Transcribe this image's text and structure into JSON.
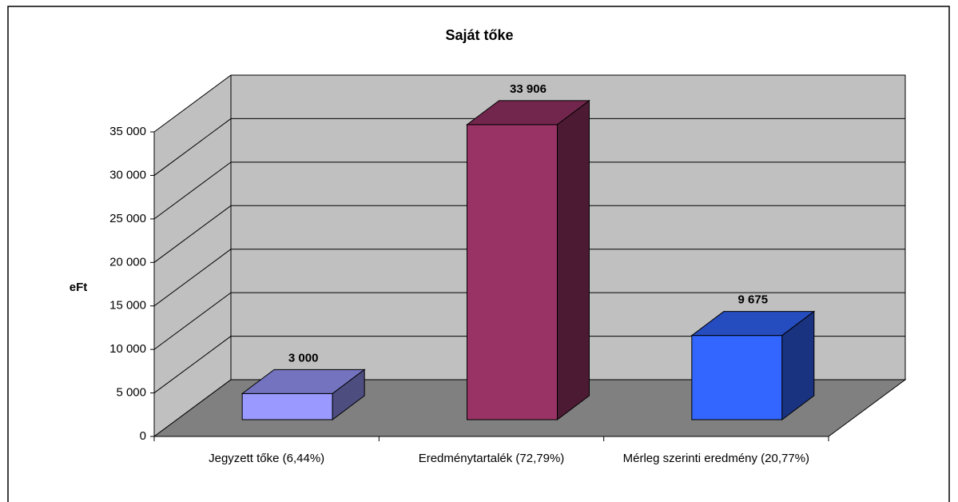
{
  "chart_data": {
    "type": "bar3d",
    "title": "Saját tőke",
    "y_label": "eFt",
    "categories": [
      "Jegyzett tőke (6,44%)",
      "Eredménytartalék (72,79%)",
      "Mérleg szerinti eredmény (20,77%)"
    ],
    "values": [
      3000,
      33906,
      9675
    ],
    "value_labels": [
      "3 000",
      "33 906",
      "9 675"
    ],
    "colors": [
      "#9999ff",
      "#993366",
      "#3366ff"
    ],
    "ylim": [
      0,
      35000
    ],
    "yticks": [
      0,
      {
        "value": 5000,
        "label": "5 000"
      },
      {
        "value": 10000,
        "label": "10 000"
      },
      {
        "value": 15000,
        "label": "15 000"
      },
      {
        "value": 20000,
        "label": "20 000"
      },
      {
        "value": 25000,
        "label": "25 000"
      },
      {
        "value": 30000,
        "label": "30 000"
      },
      {
        "value": 35000,
        "label": "35 000"
      }
    ],
    "grid": true
  }
}
